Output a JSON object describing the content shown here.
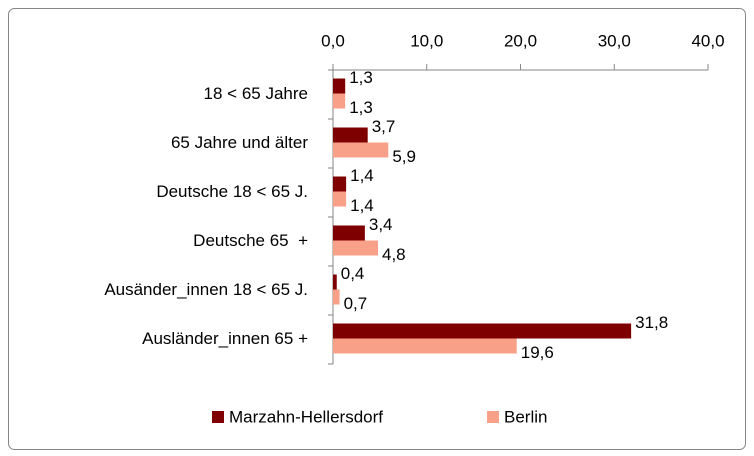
{
  "chart_data": {
    "type": "barh",
    "categories": [
      "18 < 65 Jahre",
      "65 Jahre und älter",
      "Deutsche 18 < 65 J.",
      "Deutsche 65  +",
      "Ausänder_innen 18 < 65 J.",
      "Ausländer_innen 65 +"
    ],
    "series": [
      {
        "name": "Marzahn-Hellersdorf",
        "color": "#7f0000",
        "values": [
          1.3,
          3.7,
          1.4,
          3.4,
          0.4,
          31.8
        ],
        "value_labels": [
          "1,3",
          "3,7",
          "1,4",
          "3,4",
          "0,4",
          "31,8"
        ]
      },
      {
        "name": "Berlin",
        "color": "#f9a088",
        "values": [
          1.3,
          5.9,
          1.4,
          4.8,
          0.7,
          19.6
        ],
        "value_labels": [
          "1,3",
          "5,9",
          "1,4",
          "4,8",
          "0,7",
          "19,6"
        ]
      }
    ],
    "xlim": [
      0,
      40
    ],
    "xticks": [
      {
        "value": 0,
        "label": "0,0"
      },
      {
        "value": 10,
        "label": "10,0"
      },
      {
        "value": 20,
        "label": "20,0"
      },
      {
        "value": 30,
        "label": "30,0"
      },
      {
        "value": 40,
        "label": "40,0"
      }
    ],
    "legend": "bottom"
  }
}
